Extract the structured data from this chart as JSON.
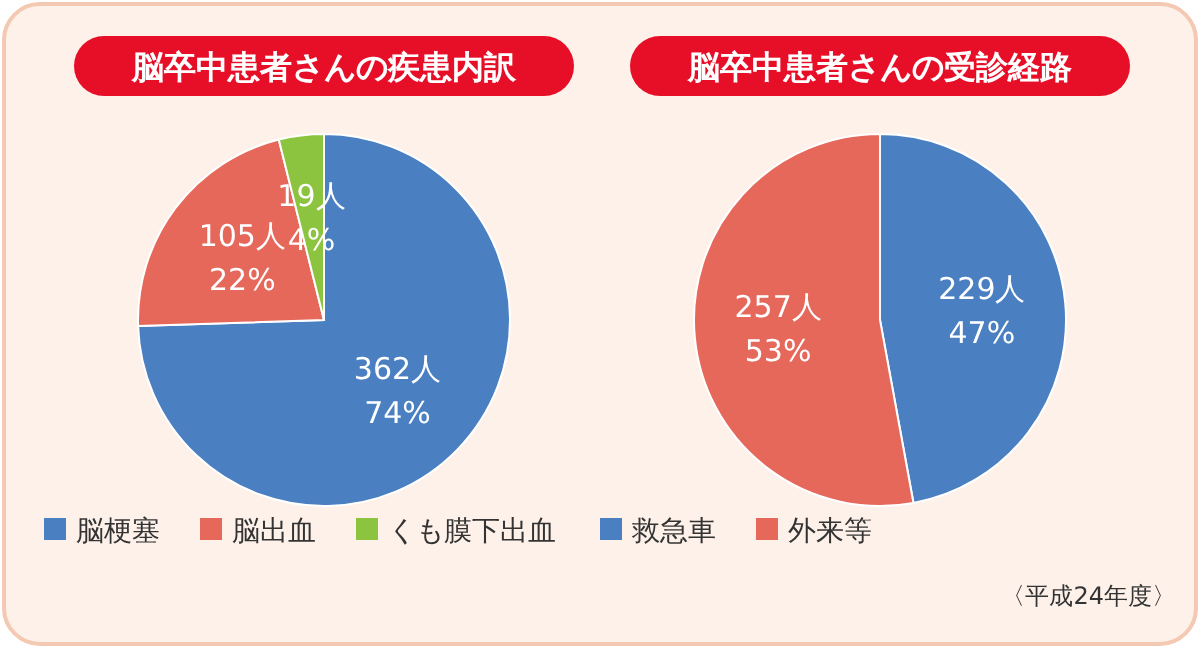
{
  "chart_data": [
    {
      "type": "pie",
      "title": "脳卒中患者さんの疾患内訳",
      "categories": [
        "脳梗塞",
        "脳出血",
        "くも膜下出血"
      ],
      "values": [
        362,
        105,
        19
      ],
      "colors": [
        "#4a7fc1",
        "#e5685b",
        "#8cc43f"
      ],
      "value_labels": [
        "362人\n74%",
        "105人\n22%",
        "19人\n4%"
      ],
      "legend": "bottom"
    },
    {
      "type": "pie",
      "title": "脳卒中患者さんの受診経路",
      "categories": [
        "救急車",
        "外来等"
      ],
      "values": [
        229,
        257
      ],
      "colors": [
        "#4a7fc1",
        "#e5685b"
      ],
      "value_labels": [
        "229人\n47%",
        "257人\n53%"
      ],
      "legend": "bottom",
      "annotations": [
        "〈平成24年度〉"
      ]
    }
  ]
}
